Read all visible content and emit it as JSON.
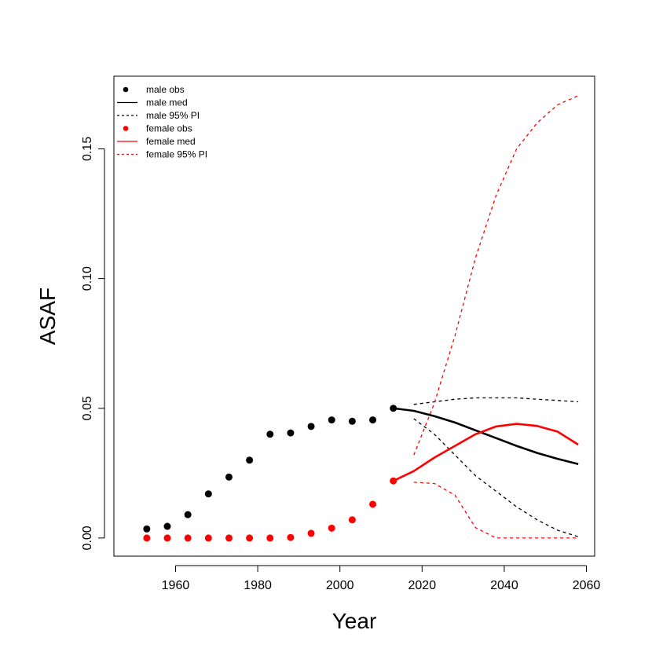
{
  "chart_data": {
    "type": "line",
    "title": "",
    "xlabel": "Year",
    "ylabel": "ASAF",
    "xlim": [
      1945,
      2062
    ],
    "ylim": [
      -0.007,
      0.178
    ],
    "xticks": [
      1960,
      1980,
      2000,
      2020,
      2040,
      2060
    ],
    "xtick_labels": [
      "1960",
      "1980",
      "2000",
      "2020",
      "2040",
      "2060"
    ],
    "yticks": [
      0.0,
      0.05,
      0.1,
      0.15
    ],
    "ytick_labels": [
      "0.00",
      "0.05",
      "0.10",
      "0.15"
    ],
    "grid": false,
    "legend_position": "top-left",
    "colors": {
      "male": "#000000",
      "female": "#ff0000"
    },
    "series": [
      {
        "name": "male obs",
        "kind": "points",
        "color": "#000000",
        "x": [
          1953,
          1958,
          1963,
          1968,
          1973,
          1978,
          1983,
          1988,
          1993,
          1998,
          2003,
          2008,
          2013
        ],
        "y": [
          0.0035,
          0.0045,
          0.009,
          0.017,
          0.0235,
          0.03,
          0.04,
          0.0405,
          0.043,
          0.0455,
          0.045,
          0.0455,
          0.05
        ]
      },
      {
        "name": "male med",
        "kind": "line",
        "dash": "solid",
        "color": "#000000",
        "x": [
          2013,
          2018,
          2023,
          2028,
          2033,
          2038,
          2043,
          2048,
          2053,
          2058
        ],
        "y": [
          0.05,
          0.049,
          0.047,
          0.0445,
          0.0415,
          0.0385,
          0.0355,
          0.0328,
          0.0305,
          0.0285
        ]
      },
      {
        "name": "male 95% PI",
        "kind": "line",
        "dash": "dashed",
        "color": "#000000",
        "x": [
          2018,
          2023,
          2028,
          2033,
          2038,
          2043,
          2048,
          2053,
          2058
        ],
        "y": [
          0.0515,
          0.0525,
          0.0535,
          0.054,
          0.054,
          0.054,
          0.0535,
          0.053,
          0.0525
        ]
      },
      {
        "name": "male 95% PI lower",
        "kind": "line",
        "dash": "dashed",
        "color": "#000000",
        "x": [
          2018,
          2023,
          2028,
          2033,
          2038,
          2043,
          2048,
          2053,
          2058
        ],
        "y": [
          0.046,
          0.04,
          0.032,
          0.024,
          0.018,
          0.012,
          0.007,
          0.003,
          0.0005
        ]
      },
      {
        "name": "female obs",
        "kind": "points",
        "color": "#ff0000",
        "x": [
          1953,
          1958,
          1963,
          1968,
          1973,
          1978,
          1983,
          1988,
          1993,
          1998,
          2003,
          2008,
          2013
        ],
        "y": [
          0.0,
          0.0,
          0.0,
          0.0,
          0.0,
          0.0,
          0.0,
          0.0002,
          0.0018,
          0.0038,
          0.007,
          0.013,
          0.022
        ]
      },
      {
        "name": "female med",
        "kind": "line",
        "dash": "solid",
        "color": "#ff0000",
        "x": [
          2013,
          2018,
          2023,
          2028,
          2033,
          2038,
          2043,
          2048,
          2053,
          2058
        ],
        "y": [
          0.022,
          0.0258,
          0.031,
          0.0355,
          0.04,
          0.043,
          0.044,
          0.0432,
          0.041,
          0.036
        ]
      },
      {
        "name": "female 95% PI",
        "kind": "line",
        "dash": "dashed",
        "color": "#ff0000",
        "x": [
          2018,
          2023,
          2028,
          2033,
          2038,
          2043,
          2048,
          2053,
          2058
        ],
        "y": [
          0.032,
          0.052,
          0.078,
          0.108,
          0.132,
          0.15,
          0.16,
          0.167,
          0.1705
        ]
      },
      {
        "name": "female 95% PI lower",
        "kind": "line",
        "dash": "dashed",
        "color": "#ff0000",
        "x": [
          2018,
          2023,
          2028,
          2033,
          2038,
          2043,
          2048,
          2053,
          2058
        ],
        "y": [
          0.0215,
          0.021,
          0.0165,
          0.004,
          0.0,
          0.0,
          0.0,
          0.0,
          0.0
        ]
      }
    ],
    "legend": [
      {
        "label": "male obs",
        "symbol": "point",
        "color": "#000000"
      },
      {
        "label": "male med",
        "symbol": "solid",
        "color": "#000000"
      },
      {
        "label": "male 95% PI",
        "symbol": "dashed",
        "color": "#000000"
      },
      {
        "label": "female obs",
        "symbol": "point",
        "color": "#ff0000"
      },
      {
        "label": "female med",
        "symbol": "solid",
        "color": "#ff0000"
      },
      {
        "label": "female 95% PI",
        "symbol": "dashed",
        "color": "#ff0000"
      }
    ]
  }
}
